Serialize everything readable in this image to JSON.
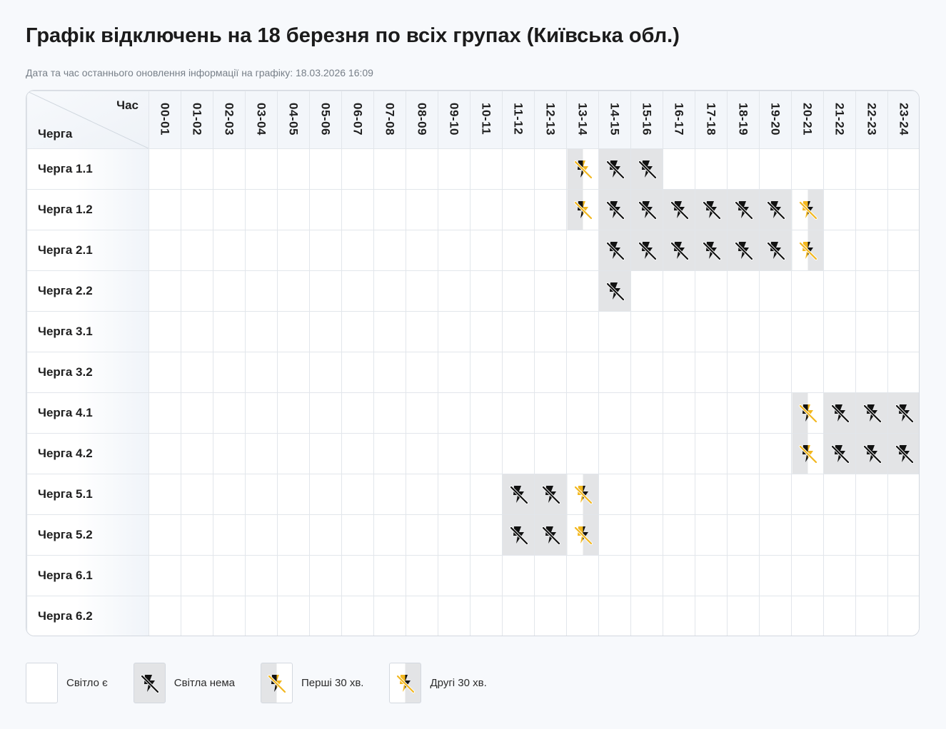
{
  "title": "Графік відключень на 18 березня по всіх групах (Київська обл.)",
  "updated": "Дата та час останнього оновлення інформації на графіку: 18.03.2026 16:09",
  "header": {
    "hour_label": "Час",
    "queue_label": "Черга"
  },
  "hours": [
    "00-01",
    "01-02",
    "02-03",
    "03-04",
    "04-05",
    "05-06",
    "06-07",
    "07-08",
    "08-09",
    "09-10",
    "10-11",
    "11-12",
    "12-13",
    "13-14",
    "14-15",
    "15-16",
    "16-17",
    "17-18",
    "18-19",
    "19-20",
    "20-21",
    "21-22",
    "22-23",
    "23-24"
  ],
  "rows": [
    {
      "label": "Черга 1.1",
      "cells": [
        "on",
        "on",
        "on",
        "on",
        "on",
        "on",
        "on",
        "on",
        "on",
        "on",
        "on",
        "on",
        "on",
        "second",
        "off",
        "off",
        "on",
        "on",
        "on",
        "on",
        "on",
        "on",
        "on",
        "on"
      ]
    },
    {
      "label": "Черга 1.2",
      "cells": [
        "on",
        "on",
        "on",
        "on",
        "on",
        "on",
        "on",
        "on",
        "on",
        "on",
        "on",
        "on",
        "on",
        "second",
        "off",
        "off",
        "off",
        "off",
        "off",
        "off",
        "first",
        "on",
        "on",
        "on"
      ]
    },
    {
      "label": "Черга 2.1",
      "cells": [
        "on",
        "on",
        "on",
        "on",
        "on",
        "on",
        "on",
        "on",
        "on",
        "on",
        "on",
        "on",
        "on",
        "on",
        "off",
        "off",
        "off",
        "off",
        "off",
        "off",
        "first",
        "on",
        "on",
        "on"
      ]
    },
    {
      "label": "Черга 2.2",
      "cells": [
        "on",
        "on",
        "on",
        "on",
        "on",
        "on",
        "on",
        "on",
        "on",
        "on",
        "on",
        "on",
        "on",
        "on",
        "off",
        "on",
        "on",
        "on",
        "on",
        "on",
        "on",
        "on",
        "on",
        "on"
      ]
    },
    {
      "label": "Черга 3.1",
      "cells": [
        "on",
        "on",
        "on",
        "on",
        "on",
        "on",
        "on",
        "on",
        "on",
        "on",
        "on",
        "on",
        "on",
        "on",
        "on",
        "on",
        "on",
        "on",
        "on",
        "on",
        "on",
        "on",
        "on",
        "on"
      ]
    },
    {
      "label": "Черга 3.2",
      "cells": [
        "on",
        "on",
        "on",
        "on",
        "on",
        "on",
        "on",
        "on",
        "on",
        "on",
        "on",
        "on",
        "on",
        "on",
        "on",
        "on",
        "on",
        "on",
        "on",
        "on",
        "on",
        "on",
        "on",
        "on"
      ]
    },
    {
      "label": "Черга 4.1",
      "cells": [
        "on",
        "on",
        "on",
        "on",
        "on",
        "on",
        "on",
        "on",
        "on",
        "on",
        "on",
        "on",
        "on",
        "on",
        "on",
        "on",
        "on",
        "on",
        "on",
        "on",
        "second",
        "off",
        "off",
        "off"
      ]
    },
    {
      "label": "Черга 4.2",
      "cells": [
        "on",
        "on",
        "on",
        "on",
        "on",
        "on",
        "on",
        "on",
        "on",
        "on",
        "on",
        "on",
        "on",
        "on",
        "on",
        "on",
        "on",
        "on",
        "on",
        "on",
        "second",
        "off",
        "off",
        "off"
      ]
    },
    {
      "label": "Черга 5.1",
      "cells": [
        "on",
        "on",
        "on",
        "on",
        "on",
        "on",
        "on",
        "on",
        "on",
        "on",
        "on",
        "off",
        "off",
        "first",
        "on",
        "on",
        "on",
        "on",
        "on",
        "on",
        "on",
        "on",
        "on",
        "on"
      ]
    },
    {
      "label": "Черга 5.2",
      "cells": [
        "on",
        "on",
        "on",
        "on",
        "on",
        "on",
        "on",
        "on",
        "on",
        "on",
        "on",
        "off",
        "off",
        "first",
        "on",
        "on",
        "on",
        "on",
        "on",
        "on",
        "on",
        "on",
        "on",
        "on"
      ]
    },
    {
      "label": "Черга 6.1",
      "cells": [
        "on",
        "on",
        "on",
        "on",
        "on",
        "on",
        "on",
        "on",
        "on",
        "on",
        "on",
        "on",
        "on",
        "on",
        "on",
        "on",
        "on",
        "on",
        "on",
        "on",
        "on",
        "on",
        "on",
        "on"
      ]
    },
    {
      "label": "Черга 6.2",
      "cells": [
        "on",
        "on",
        "on",
        "on",
        "on",
        "on",
        "on",
        "on",
        "on",
        "on",
        "on",
        "on",
        "on",
        "on",
        "on",
        "on",
        "on",
        "on",
        "on",
        "on",
        "on",
        "on",
        "on",
        "on"
      ]
    }
  ],
  "legend": [
    {
      "state": "on",
      "label": "Світло є"
    },
    {
      "state": "off",
      "label": "Світла нема"
    },
    {
      "state": "first",
      "label": "Перші 30 хв."
    },
    {
      "state": "second",
      "label": "Другі 30 хв."
    }
  ],
  "icons": {
    "no_power": "no-power-icon"
  },
  "colors": {
    "outage": "#e3e4e6",
    "accent_yellow": "#f2b71f",
    "icon_black": "#111111"
  }
}
